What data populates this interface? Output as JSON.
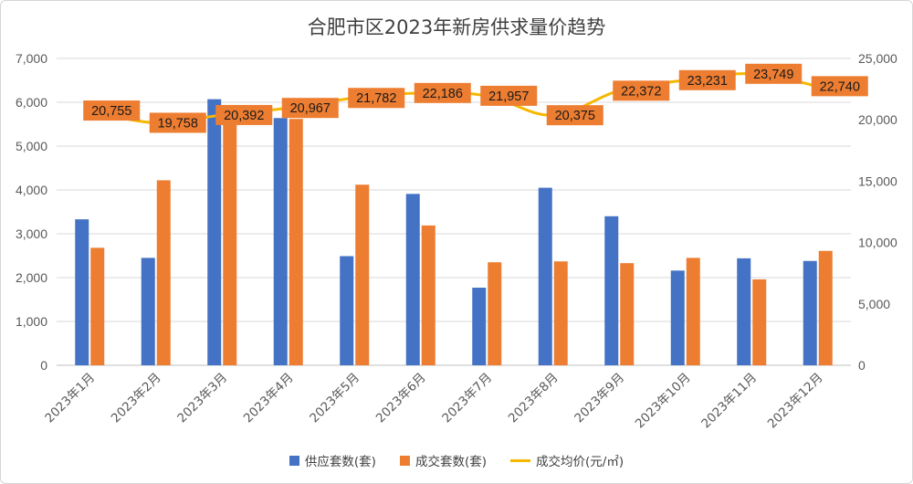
{
  "chart_data": {
    "type": "bar+line",
    "title": "合肥市区2023年新房供求量价趋势",
    "categories": [
      "2023年1月",
      "2023年2月",
      "2023年3月",
      "2023年4月",
      "2023年5月",
      "2023年6月",
      "2023年7月",
      "2023年8月",
      "2023年9月",
      "2023年10月",
      "2023年11月",
      "2023年12月"
    ],
    "series": [
      {
        "name": "供应套数(套)",
        "type": "bar",
        "axis": "left",
        "color": "#4472C4",
        "values": [
          3330,
          2450,
          6070,
          5640,
          2490,
          3910,
          1770,
          4050,
          3400,
          2160,
          2440,
          2380
        ]
      },
      {
        "name": "成交套数(套)",
        "type": "bar",
        "axis": "left",
        "color": "#ED7D31",
        "values": [
          2680,
          4220,
          5500,
          5620,
          4120,
          3190,
          2350,
          2370,
          2330,
          2450,
          1960,
          2610
        ]
      },
      {
        "name": "成交均价(元/㎡)",
        "type": "line",
        "axis": "right",
        "color": "#F5B800",
        "values": [
          20755,
          19758,
          20392,
          20967,
          21782,
          22186,
          21957,
          20375,
          22372,
          23231,
          23749,
          22740
        ],
        "labels": [
          "20,755",
          "19,758",
          "20,392",
          "20,967",
          "21,782",
          "22,186",
          "21,957",
          "20,375",
          "22,372",
          "23,231",
          "23,749",
          "22,740"
        ]
      }
    ],
    "y_left": {
      "range": [
        0,
        7000
      ],
      "ticks": [
        "0",
        "1,000",
        "2,000",
        "3,000",
        "4,000",
        "5,000",
        "6,000",
        "7,000"
      ]
    },
    "y_right": {
      "range": [
        0,
        25000
      ],
      "ticks": [
        "0",
        "5,000",
        "10,000",
        "15,000",
        "20,000",
        "25,000"
      ]
    },
    "grid": "horizontal",
    "legend": "bottom",
    "label_box_color": "#ED7D31"
  }
}
